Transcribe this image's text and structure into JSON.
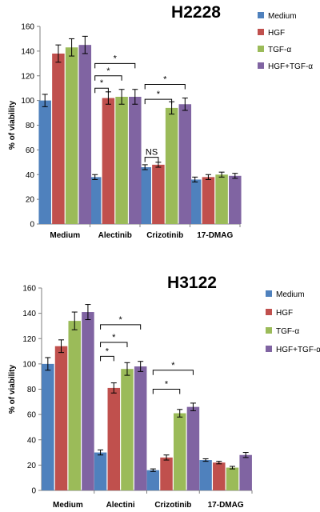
{
  "chart_data": [
    {
      "type": "bar",
      "title": "H2228",
      "xlabel": "",
      "ylabel": "% of viability",
      "ylim": [
        0,
        160
      ],
      "yticks": [
        0,
        20,
        40,
        60,
        80,
        100,
        120,
        140,
        160
      ],
      "categories": [
        "Medium",
        "Alectinib",
        "Crizotinib",
        "17-DMAG"
      ],
      "series": [
        {
          "name": "Medium",
          "color": "#4f81bd",
          "values": [
            100,
            38,
            46,
            36
          ],
          "errors": [
            5,
            2,
            2,
            2
          ]
        },
        {
          "name": "HGF",
          "color": "#c0504d",
          "values": [
            138,
            102,
            48,
            38
          ],
          "errors": [
            7,
            5,
            2,
            2
          ]
        },
        {
          "name": "TGF-α",
          "color": "#9bbb59",
          "values": [
            143,
            103,
            94,
            40
          ],
          "errors": [
            7,
            6,
            5,
            2
          ]
        },
        {
          "name": "HGF+TGF-α",
          "color": "#8064a2",
          "values": [
            145,
            103,
            97,
            39
          ],
          "errors": [
            7,
            6,
            5,
            2
          ]
        }
      ],
      "legend_position": "right",
      "annotations": [
        {
          "category": "Alectinib",
          "from": "Medium",
          "to": "HGF",
          "label": "*",
          "y": 110
        },
        {
          "category": "Alectinib",
          "from": "Medium",
          "to": "TGF-α",
          "label": "*",
          "y": 120
        },
        {
          "category": "Alectinib",
          "from": "Medium",
          "to": "HGF+TGF-α",
          "label": "*",
          "y": 130
        },
        {
          "category": "Crizotinib",
          "from": "Medium",
          "to": "HGF",
          "label": "NS",
          "y": 54
        },
        {
          "category": "Crizotinib",
          "from": "Medium",
          "to": "TGF-α",
          "label": "*",
          "y": 101
        },
        {
          "category": "Crizotinib",
          "from": "Medium",
          "to": "HGF+TGF-α",
          "label": "*",
          "y": 113
        }
      ]
    },
    {
      "type": "bar",
      "title": "H3122",
      "xlabel": "",
      "ylabel": "% of viability",
      "ylim": [
        0,
        160
      ],
      "yticks": [
        0,
        20,
        40,
        60,
        80,
        100,
        120,
        140,
        160
      ],
      "categories": [
        "Medium",
        "Alectini",
        "Crizotinib",
        "17-DMAG"
      ],
      "series": [
        {
          "name": "Medium",
          "color": "#4f81bd",
          "values": [
            100,
            30,
            16,
            24
          ],
          "errors": [
            5,
            2,
            1,
            1
          ]
        },
        {
          "name": "HGF",
          "color": "#c0504d",
          "values": [
            114,
            81,
            26,
            22
          ],
          "errors": [
            5,
            4,
            2,
            1
          ]
        },
        {
          "name": "TGF-α",
          "color": "#9bbb59",
          "values": [
            134,
            96,
            61,
            18
          ],
          "errors": [
            7,
            5,
            3,
            1
          ]
        },
        {
          "name": "HGF+TGF-α",
          "color": "#8064a2",
          "values": [
            141,
            98,
            66,
            28
          ],
          "errors": [
            6,
            4,
            3,
            2
          ]
        }
      ],
      "legend_position": "right",
      "annotations": [
        {
          "category": "Alectini",
          "from": "Medium",
          "to": "HGF",
          "label": "*",
          "y": 106
        },
        {
          "category": "Alectini",
          "from": "Medium",
          "to": "TGF-α",
          "label": "*",
          "y": 117
        },
        {
          "category": "Alectini",
          "from": "Medium",
          "to": "HGF+TGF-α",
          "label": "*",
          "y": 131
        },
        {
          "category": "Crizotinib",
          "from": "Medium",
          "to": "TGF-α",
          "label": "*",
          "y": 80
        },
        {
          "category": "Crizotinib",
          "from": "Medium",
          "to": "HGF+TGF-α",
          "label": "*",
          "y": 95
        }
      ]
    }
  ]
}
